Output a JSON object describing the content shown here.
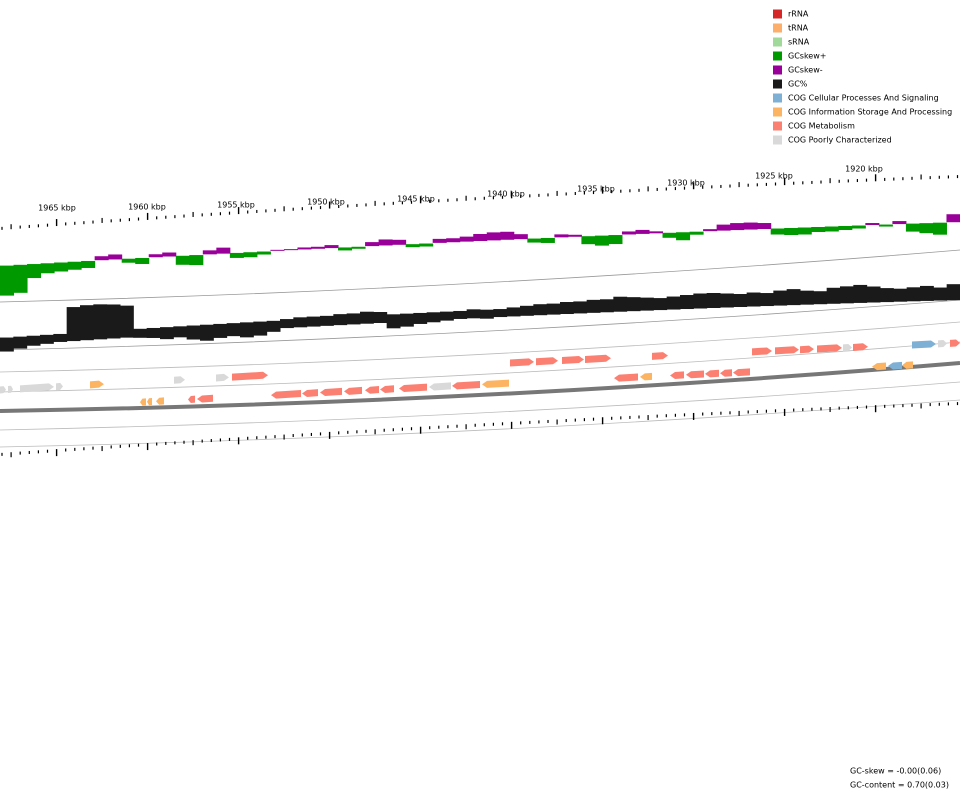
{
  "legend": [
    {
      "label": "rRNA",
      "color": "#d62728"
    },
    {
      "label": "tRNA",
      "color": "#fdae6b"
    },
    {
      "label": "sRNA",
      "color": "#a1d99b"
    },
    {
      "label": "GCskew+",
      "color": "#009900"
    },
    {
      "label": "GCskew-",
      "color": "#990099"
    },
    {
      "label": "GC%",
      "color": "#1a1a1a"
    },
    {
      "label": "COG Cellular Processes And Signaling",
      "color": "#7eb0d5"
    },
    {
      "label": "COG Information Storage And Processing",
      "color": "#fdb462"
    },
    {
      "label": "COG Metabolism",
      "color": "#fb8072"
    },
    {
      "label": "COG Poorly Characterized",
      "color": "#d9d9d9"
    }
  ],
  "ruler": {
    "labels": [
      "1965 kbp",
      "1960 kbp",
      "1955 kbp",
      "1950 kbp",
      "1945 kbp",
      "1940 kbp",
      "1935 kbp",
      "1930 kbp",
      "1925 kbp",
      "1920 kbp"
    ]
  },
  "footer": {
    "gc_skew": "GC-skew = -0.00(0.06)",
    "gc_content": "GC-content = 0.70(0.03)"
  }
}
